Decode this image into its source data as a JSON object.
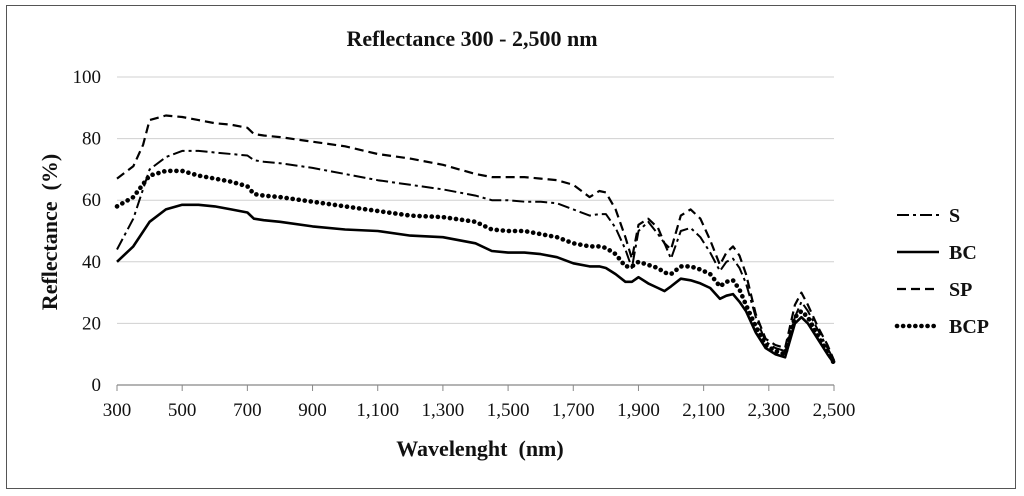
{
  "chart_data": {
    "type": "line",
    "title": "Reflectance 300 - 2,500 nm",
    "xlabel": "Wavelenght  (nm)",
    "ylabel": "Reflectance  (%)",
    "xlim": [
      300,
      2500
    ],
    "ylim": [
      0,
      100
    ],
    "xticks": [
      300,
      500,
      700,
      900,
      1100,
      1300,
      1500,
      1700,
      1900,
      2100,
      2300,
      2500
    ],
    "xtick_labels": [
      "300",
      "500",
      "700",
      "900",
      "1,100",
      "1,300",
      "1,500",
      "1,700",
      "1,900",
      "2,100",
      "2,300",
      "2,500"
    ],
    "yticks": [
      0,
      20,
      40,
      60,
      80,
      100
    ],
    "ytick_labels": [
      "0",
      "20",
      "40",
      "60",
      "80",
      "100"
    ],
    "grid": "horizontal",
    "legend_position": "right",
    "series": [
      {
        "name": "S",
        "style": "dash-dot",
        "color": "#000000",
        "x": [
          300,
          350,
          400,
          450,
          500,
          550,
          600,
          650,
          700,
          720,
          750,
          800,
          900,
          1000,
          1100,
          1200,
          1300,
          1400,
          1450,
          1500,
          1550,
          1600,
          1650,
          1700,
          1750,
          1780,
          1800,
          1830,
          1860,
          1880,
          1900,
          1930,
          1960,
          1980,
          2000,
          2030,
          2060,
          2090,
          2120,
          2150,
          2170,
          2190,
          2210,
          2230,
          2260,
          2290,
          2320,
          2350,
          2380,
          2400,
          2420,
          2450,
          2480,
          2500
        ],
        "y": [
          44,
          54,
          70,
          74,
          76,
          76,
          75.5,
          75,
          74.5,
          73,
          72.5,
          72,
          70.5,
          68.5,
          66.5,
          65,
          63.5,
          61.5,
          60,
          60,
          59.5,
          59.5,
          59,
          57,
          55,
          55.5,
          55.5,
          51,
          44,
          38,
          50,
          53,
          49,
          46,
          41,
          50,
          51,
          48,
          43,
          37,
          40,
          41,
          38,
          33,
          22,
          14,
          12,
          11,
          22,
          27,
          24,
          18,
          12,
          8
        ]
      },
      {
        "name": "BC",
        "style": "solid",
        "color": "#000000",
        "x": [
          300,
          350,
          400,
          450,
          500,
          550,
          600,
          650,
          700,
          720,
          750,
          800,
          900,
          1000,
          1100,
          1200,
          1300,
          1400,
          1450,
          1500,
          1550,
          1600,
          1650,
          1700,
          1750,
          1780,
          1800,
          1830,
          1860,
          1880,
          1900,
          1930,
          1960,
          1980,
          2000,
          2030,
          2060,
          2090,
          2120,
          2150,
          2170,
          2190,
          2210,
          2230,
          2260,
          2290,
          2320,
          2350,
          2380,
          2400,
          2420,
          2450,
          2480,
          2500
        ],
        "y": [
          40,
          45,
          53,
          57,
          58.5,
          58.5,
          58,
          57,
          56,
          54,
          53.5,
          53,
          51.5,
          50.5,
          50,
          48.5,
          48,
          46,
          43.5,
          43,
          43,
          42.5,
          41.5,
          39.5,
          38.5,
          38.5,
          38,
          36,
          33.5,
          33.5,
          35,
          33,
          31.5,
          30.5,
          32,
          34.5,
          34,
          33,
          31.5,
          28,
          29,
          29.5,
          27,
          24,
          17,
          12,
          10,
          9,
          20,
          22,
          20,
          15,
          10,
          7
        ]
      },
      {
        "name": "SP",
        "style": "dashed",
        "color": "#000000",
        "x": [
          300,
          350,
          380,
          400,
          450,
          500,
          550,
          600,
          650,
          700,
          720,
          750,
          800,
          900,
          1000,
          1100,
          1200,
          1300,
          1400,
          1450,
          1500,
          1550,
          1600,
          1650,
          1700,
          1750,
          1780,
          1800,
          1830,
          1860,
          1880,
          1900,
          1930,
          1960,
          1980,
          2000,
          2030,
          2060,
          2090,
          2120,
          2150,
          2170,
          2190,
          2210,
          2230,
          2260,
          2290,
          2320,
          2350,
          2380,
          2400,
          2420,
          2450,
          2480,
          2500
        ],
        "y": [
          67,
          71,
          78,
          86,
          87.5,
          87,
          86,
          85,
          84.5,
          83.5,
          81.5,
          81,
          80.5,
          79,
          77.5,
          75,
          73.5,
          71.5,
          68.5,
          67.5,
          67.5,
          67.5,
          67,
          66.5,
          65,
          61,
          63,
          62.5,
          57,
          48,
          41,
          52,
          54,
          51,
          46,
          44,
          55,
          57,
          54,
          47,
          39,
          43,
          45,
          42,
          36,
          23,
          15,
          13,
          12,
          26,
          30,
          26,
          19,
          13,
          8
        ]
      },
      {
        "name": "BCP",
        "style": "dotted",
        "color": "#000000",
        "x": [
          300,
          350,
          400,
          450,
          500,
          550,
          600,
          650,
          700,
          720,
          750,
          800,
          900,
          1000,
          1100,
          1200,
          1300,
          1400,
          1450,
          1500,
          1550,
          1600,
          1650,
          1700,
          1750,
          1780,
          1800,
          1830,
          1860,
          1880,
          1900,
          1930,
          1960,
          1980,
          2000,
          2030,
          2060,
          2090,
          2120,
          2150,
          2170,
          2190,
          2210,
          2230,
          2260,
          2290,
          2320,
          2350,
          2380,
          2400,
          2420,
          2450,
          2480,
          2500
        ],
        "y": [
          58,
          61,
          68,
          69.5,
          69.5,
          68,
          67,
          66,
          64.5,
          62,
          61.5,
          61,
          59.5,
          58,
          56.5,
          55,
          54.5,
          53,
          50.5,
          50,
          50,
          49,
          48,
          46,
          45,
          45,
          44.5,
          42.5,
          38.5,
          38.5,
          40,
          39,
          38,
          36.5,
          36,
          38.5,
          38.5,
          37.5,
          36,
          32,
          33.5,
          34,
          31,
          26,
          19,
          13,
          11,
          10,
          22,
          24,
          22,
          16,
          11,
          7
        ]
      }
    ]
  }
}
